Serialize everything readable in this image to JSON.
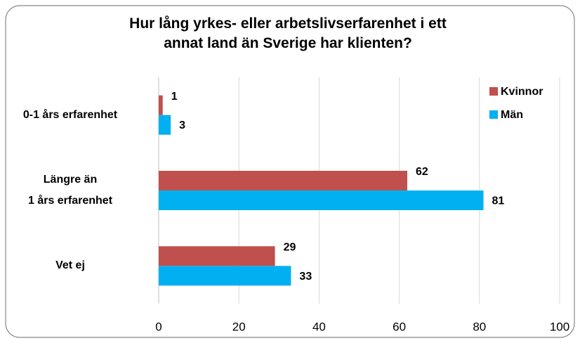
{
  "chart_data": {
    "type": "bar",
    "orientation": "horizontal",
    "title": "Hur lång yrkes- eller arbetslivserfarenhet i ett\nannat land än Sverige har klienten?",
    "categories": [
      "0-1 års erfarenhet",
      "Längre än\n1 års erfarenhet",
      "Vet ej"
    ],
    "series": [
      {
        "name": "Kvinnor",
        "color": "#c0504d",
        "values": [
          1,
          62,
          29
        ]
      },
      {
        "name": "Män",
        "color": "#00b0f0",
        "values": [
          3,
          81,
          33
        ]
      }
    ],
    "xlim": [
      0,
      100
    ],
    "xticks": [
      0,
      20,
      40,
      60,
      80,
      100
    ],
    "grid": true,
    "legend": "top-right"
  }
}
